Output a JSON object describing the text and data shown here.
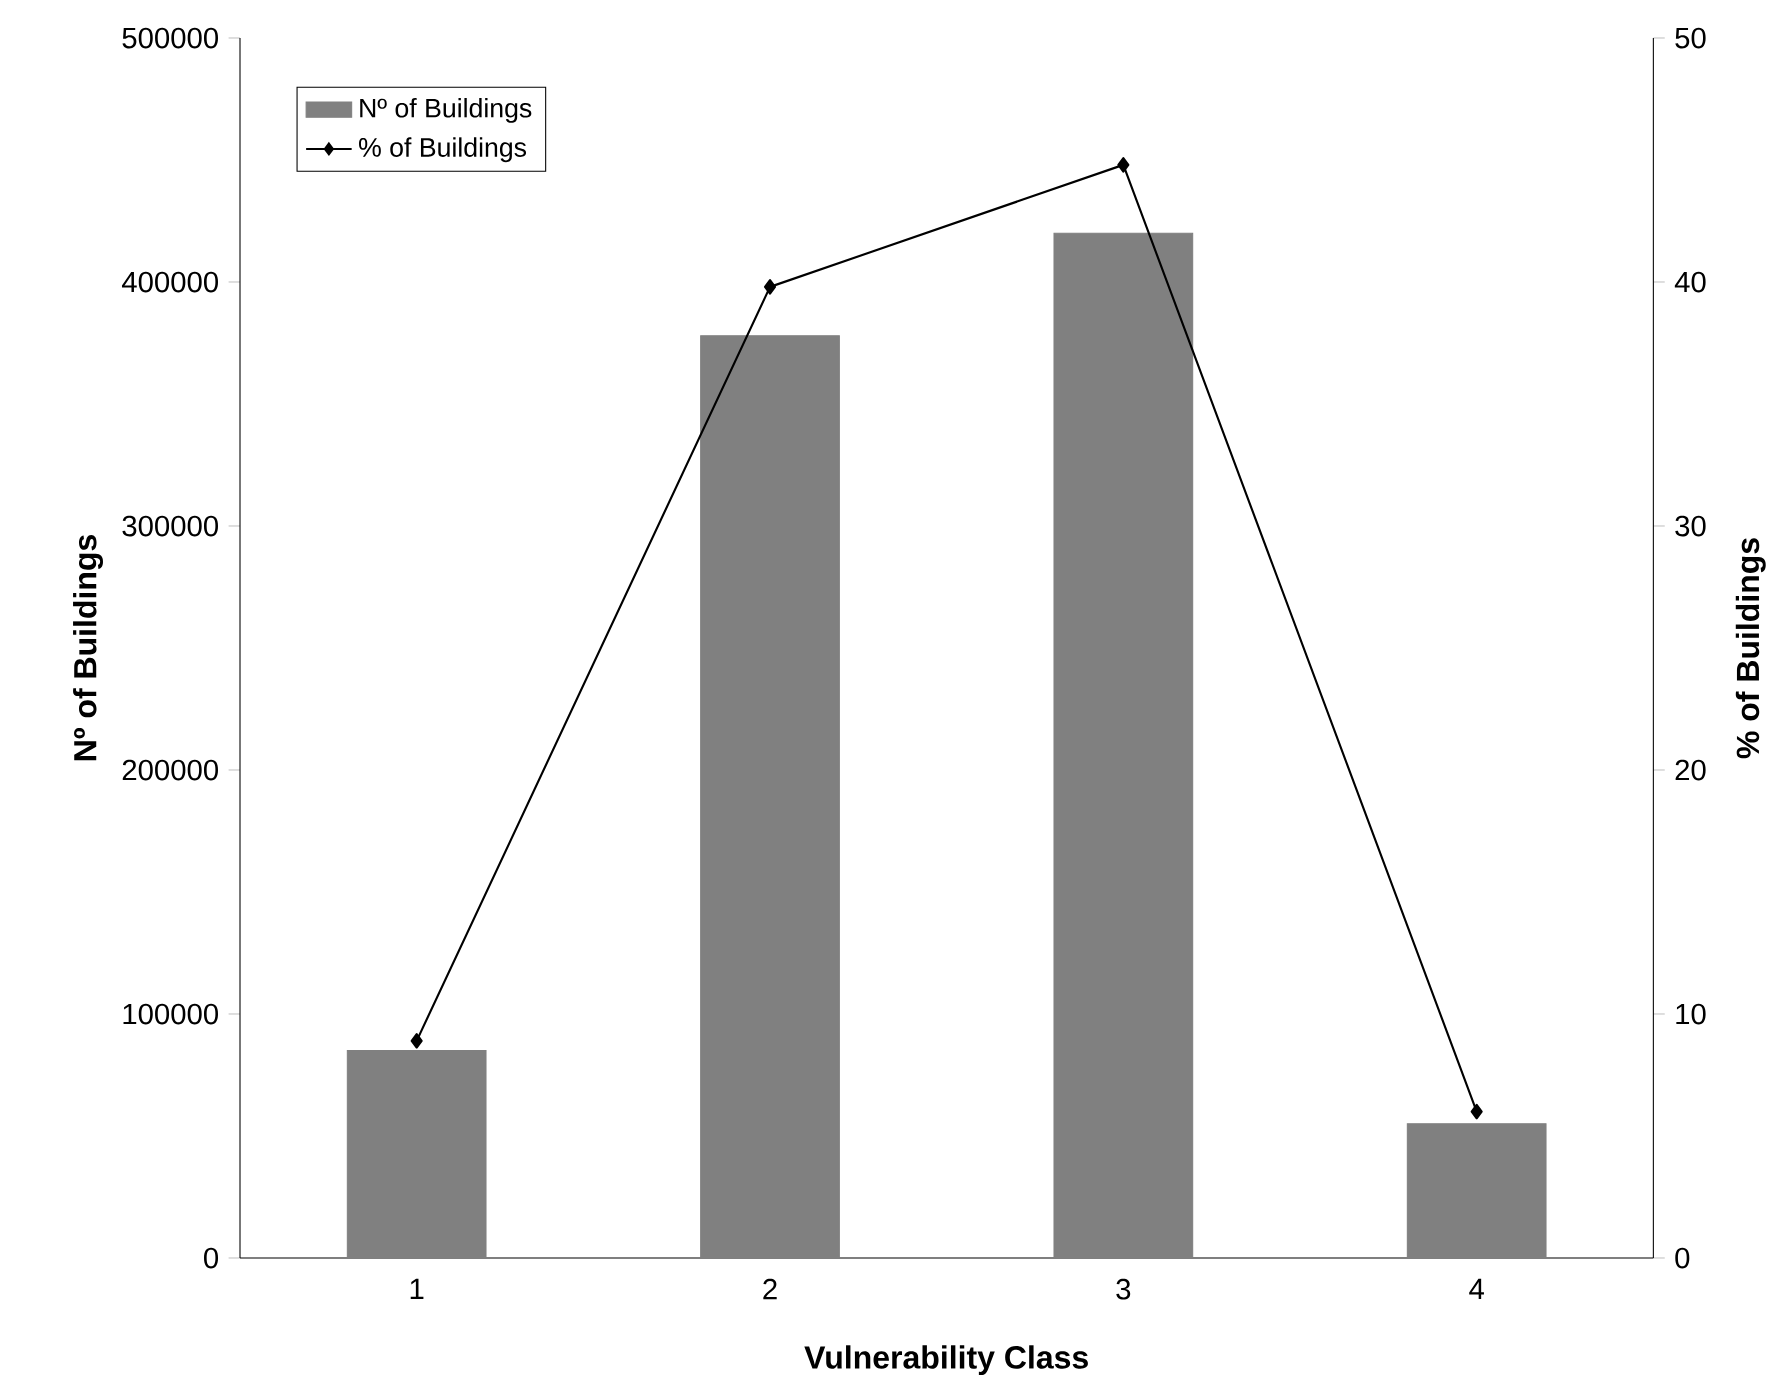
{
  "chart_data": {
    "type": "bar",
    "xlabel": "Vulnerability Class",
    "ylabel": "Nº of Buildings",
    "y2label": "% of Buildings",
    "categories": [
      "1",
      "2",
      "3",
      "4"
    ],
    "series": [
      {
        "name": "Nº of Buildings",
        "color": "#808080",
        "values": [
          85000,
          378000,
          420000,
          55000
        ]
      },
      {
        "name": "% of Buildings",
        "type": "line",
        "axis": "y2",
        "color": "#000000",
        "values": [
          8.9,
          39.8,
          44.8,
          6.0
        ]
      }
    ],
    "ylim": [
      0,
      500000
    ],
    "yticks": [
      0,
      100000,
      200000,
      300000,
      400000,
      500000
    ],
    "y2lim": [
      0,
      50
    ],
    "y2ticks": [
      0,
      10,
      20,
      30,
      40,
      50
    ],
    "marker": "diamond",
    "legend": "top left",
    "grid": false
  }
}
